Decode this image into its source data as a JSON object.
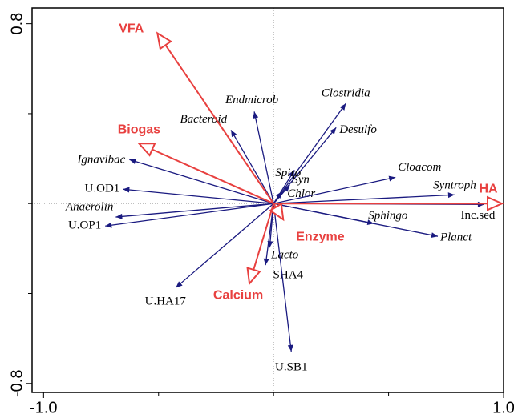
{
  "chart_data": {
    "type": "biplot",
    "xlim": [
      -1.05,
      1.0
    ],
    "ylim": [
      -0.84,
      0.87
    ],
    "xticks": [
      {
        "value": -1.0,
        "label": "-1.0"
      },
      {
        "value": 1.0,
        "label": "1.0"
      }
    ],
    "yticks": [
      {
        "value": -0.8,
        "label": "-0.8"
      },
      {
        "value": 0.8,
        "label": "0.8"
      }
    ],
    "xminor": [
      -0.5,
      0,
      0.5
    ],
    "yminor": [
      -0.4,
      0,
      0.4
    ],
    "zero_lines": true,
    "environment": {
      "color": "#e8403f",
      "labels": [
        "VFA",
        "Biogas",
        "HA",
        "Enzyme",
        "Calcium"
      ],
      "x": [
        -0.505,
        -0.585,
        0.993,
        0.042,
        -0.105
      ],
      "y": [
        0.758,
        0.267,
        0.0,
        -0.071,
        -0.356
      ]
    },
    "species": {
      "color": "#1a1a80",
      "labels": [
        "Endmicrob",
        "Bacteroid",
        "Clostridia",
        "Desulfo",
        "Spiro",
        "Syn",
        "Chlor",
        "Cloacom",
        "Syntroph",
        "Inc.sed",
        "Sphingo",
        "Planct",
        "Ignavibac",
        "U.OD1",
        "Anaerolin",
        "U.OP1",
        "U.HA17",
        "Lacto",
        "SHA4",
        "U.SB1"
      ],
      "x": [
        -0.084,
        -0.185,
        0.314,
        0.272,
        0.091,
        0.07,
        0.035,
        0.53,
        0.787,
        0.916,
        0.436,
        0.714,
        -0.627,
        -0.655,
        -0.686,
        -0.732,
        -0.425,
        -0.035,
        -0.017,
        0.077
      ],
      "y": [
        0.409,
        0.327,
        0.445,
        0.338,
        0.149,
        0.082,
        0.053,
        0.117,
        0.039,
        -0.004,
        -0.089,
        -0.146,
        0.196,
        0.064,
        -0.06,
        -0.1,
        -0.374,
        -0.274,
        -0.196,
        -0.658
      ]
    }
  }
}
